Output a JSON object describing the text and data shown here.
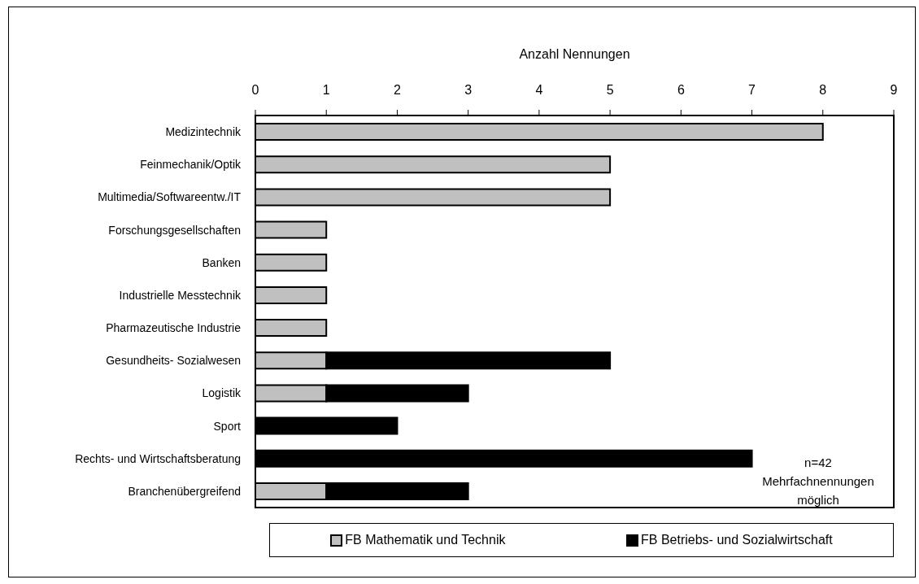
{
  "chart_data": {
    "type": "bar",
    "orientation": "horizontal",
    "stacked": true,
    "xlabel": "Anzahl Nennungen",
    "categories": [
      "Medizintechnik",
      "Feinmechanik/Optik",
      "Multimedia/Softwareentw./IT",
      "Forschungsgesellschaften",
      "Banken",
      "Industrielle Messtechnik",
      "Pharmazeutische Industrie",
      "Gesundheits- Sozialwesen",
      "Logistik",
      "Sport",
      "Rechts- und Wirtschaftsberatung",
      "Branchenübergreifend"
    ],
    "series": [
      {
        "name": "FB Mathematik und Technik",
        "color": "#c0c0c0",
        "values": [
          8,
          5,
          5,
          1,
          1,
          1,
          1,
          1,
          1,
          0,
          0,
          1
        ]
      },
      {
        "name": "FB Betriebs- und Sozialwirtschaft",
        "color": "#000000",
        "values": [
          0,
          0,
          0,
          0,
          0,
          0,
          0,
          4,
          2,
          2,
          7,
          2
        ]
      }
    ],
    "xlim": [
      0,
      9
    ],
    "xticks": [
      0,
      1,
      2,
      3,
      4,
      5,
      6,
      7,
      8,
      9
    ],
    "legend": "bottom",
    "annotations": [
      "n=42\nMehrfachnennungen\nmöglich"
    ]
  }
}
